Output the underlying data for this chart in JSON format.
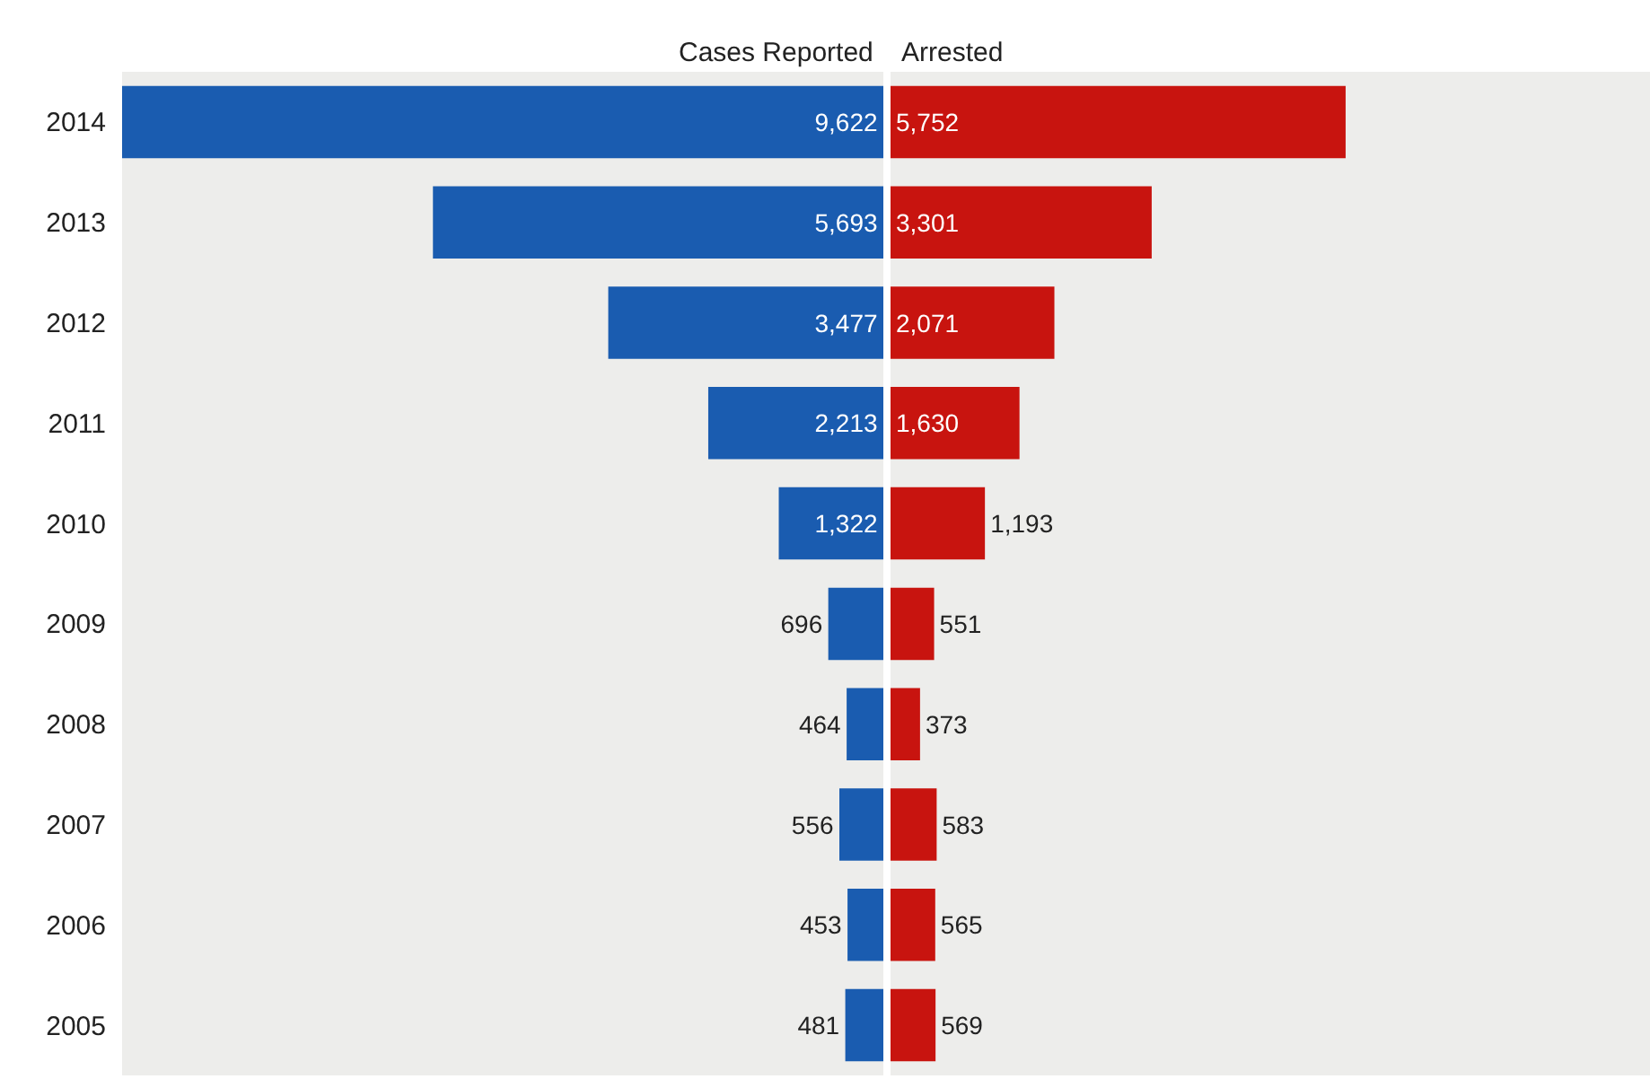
{
  "chart_data": [
    {
      "type": "bar",
      "orientation": "horizontal",
      "categories": [
        "2014",
        "2013",
        "2012",
        "2011",
        "2010",
        "2009",
        "2008",
        "2007",
        "2006",
        "2005"
      ],
      "series": [
        {
          "name": "Cases Reported",
          "color": "#1a5cb0",
          "values": [
            9622,
            5693,
            3477,
            2213,
            1322,
            696,
            464,
            556,
            453,
            481
          ],
          "value_labels": [
            "9,622",
            "5,693",
            "3,477",
            "2,213",
            "1,322",
            "696",
            "464",
            "556",
            "453",
            "481"
          ]
        }
      ],
      "legend": false,
      "tick_labels": "y"
    },
    {
      "type": "bar",
      "orientation": "horizontal",
      "categories": [
        "2014",
        "2013",
        "2012",
        "2011",
        "2010",
        "2009",
        "2008",
        "2007",
        "2006",
        "2005"
      ],
      "series": [
        {
          "name": "Arrested",
          "color": "#c8140f",
          "values": [
            5752,
            3301,
            2071,
            1630,
            1193,
            551,
            373,
            583,
            565,
            569
          ],
          "value_labels": [
            "5,752",
            "3,301",
            "2,071",
            "1,630",
            "1,193",
            "551",
            "373",
            "583",
            "565",
            "569"
          ]
        }
      ],
      "legend": false,
      "tick_labels": false
    }
  ]
}
